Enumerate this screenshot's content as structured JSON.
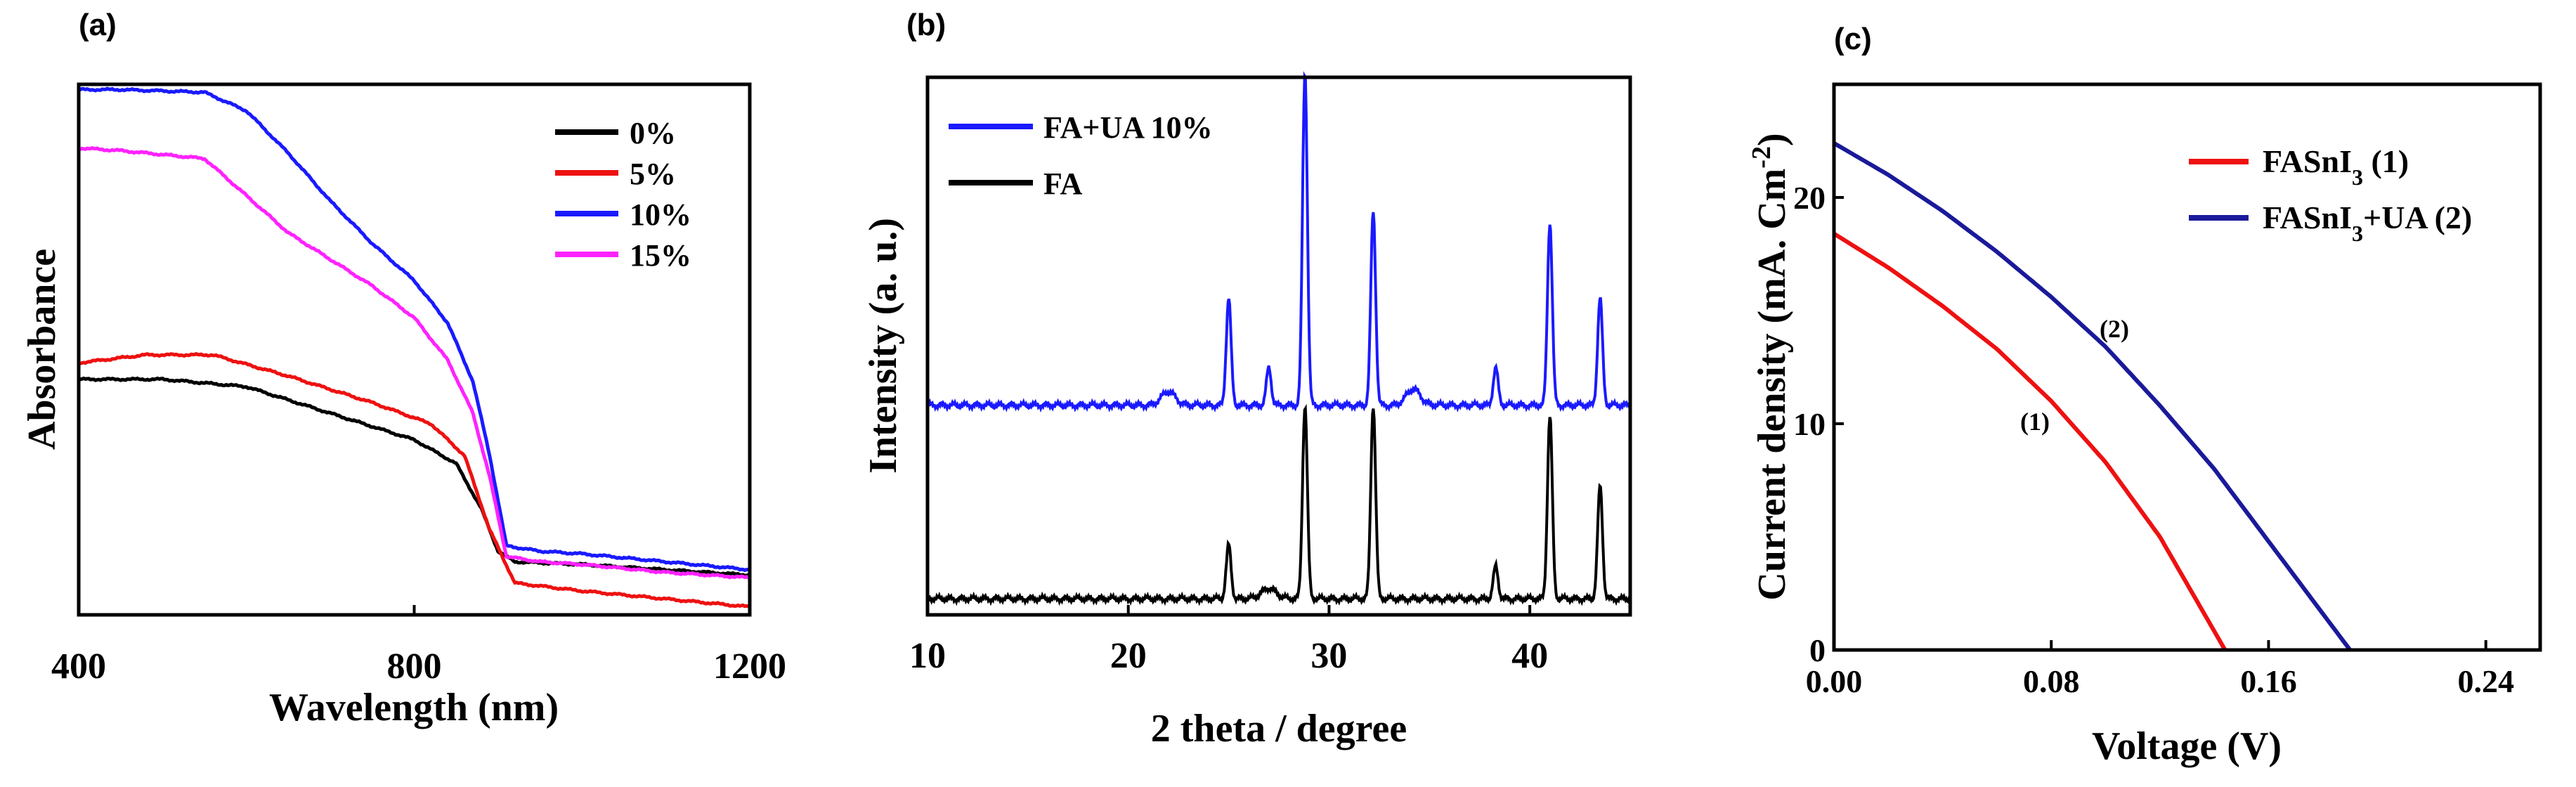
{
  "chart_data": [
    {
      "panel_label": "(a)",
      "type": "line",
      "xlabel": "Wavelength (nm)",
      "ylabel": "Absorbance",
      "xlim": [
        400,
        1200
      ],
      "ylim": [
        0,
        1
      ],
      "x_ticks": [
        "400",
        "800",
        "1200"
      ],
      "y_ticks": [],
      "legend_position": "top-right",
      "series": [
        {
          "name": "0%",
          "color": "#000000",
          "x": [
            400,
            500,
            600,
            700,
            800,
            850,
            880,
            900,
            920,
            1000,
            1100,
            1200
          ],
          "y": [
            0.444,
            0.444,
            0.43,
            0.38,
            0.33,
            0.285,
            0.2,
            0.12,
            0.1,
            0.095,
            0.085,
            0.075
          ]
        },
        {
          "name": "5%",
          "color": "#ee1111",
          "x": [
            400,
            480,
            560,
            650,
            750,
            820,
            860,
            890,
            920,
            1000,
            1100,
            1200
          ],
          "y": [
            0.475,
            0.49,
            0.49,
            0.45,
            0.4,
            0.36,
            0.3,
            0.16,
            0.06,
            0.045,
            0.03,
            0.015
          ]
        },
        {
          "name": "10%",
          "color": "#1a1aff",
          "x": [
            400,
            450,
            550,
            600,
            650,
            700,
            750,
            800,
            840,
            870,
            890,
            910,
            950,
            1000,
            1100,
            1200
          ],
          "y": [
            0.99,
            0.99,
            0.985,
            0.95,
            0.87,
            0.78,
            0.7,
            0.63,
            0.55,
            0.44,
            0.3,
            0.13,
            0.12,
            0.115,
            0.1,
            0.085
          ]
        },
        {
          "name": "15%",
          "color": "#ff22ff",
          "x": [
            400,
            450,
            550,
            600,
            650,
            700,
            750,
            800,
            840,
            870,
            890,
            910,
            950,
            1000,
            1100,
            1200
          ],
          "y": [
            0.88,
            0.875,
            0.86,
            0.79,
            0.72,
            0.67,
            0.62,
            0.56,
            0.48,
            0.38,
            0.26,
            0.11,
            0.1,
            0.095,
            0.08,
            0.07
          ]
        }
      ]
    },
    {
      "panel_label": "(b)",
      "type": "line",
      "xlabel": "2 theta / degree",
      "ylabel": "Intensity (a. u.)",
      "xlim": [
        10,
        45
      ],
      "ylim": [
        0,
        1
      ],
      "x_ticks": [
        "10",
        "20",
        "30",
        "40"
      ],
      "y_ticks": [],
      "legend_position": "top-left",
      "series": [
        {
          "name": "FA+UA 10%",
          "color": "#1a1aff",
          "baseline": 0.39,
          "peaks": [
            [
              22,
              0.025
            ],
            [
              25,
              0.2
            ],
            [
              27,
              0.07
            ],
            [
              28.8,
              0.62
            ],
            [
              32.2,
              0.36
            ],
            [
              34.2,
              0.03
            ],
            [
              38.3,
              0.07
            ],
            [
              41,
              0.34
            ],
            [
              43.5,
              0.2
            ]
          ]
        },
        {
          "name": "FA",
          "color": "#000000",
          "baseline": 0.03,
          "peaks": [
            [
              25,
              0.1
            ],
            [
              27,
              0.02
            ],
            [
              28.8,
              0.36
            ],
            [
              32.2,
              0.36
            ],
            [
              38.3,
              0.06
            ],
            [
              41,
              0.34
            ],
            [
              43.5,
              0.21
            ]
          ]
        }
      ]
    },
    {
      "panel_label": "(c)",
      "type": "line",
      "xlabel": "Voltage (V)",
      "ylabel": "Current density (mA. Cm",
      "ylabel_sup": "-2",
      "ylabel_end": ")",
      "xlim": [
        0,
        0.26
      ],
      "ylim": [
        0,
        25
      ],
      "x_ticks": [
        "0.00",
        "0.08",
        "0.16",
        "0.24"
      ],
      "y_ticks": [
        "0",
        "10",
        "20"
      ],
      "legend_position": "top-right",
      "annotations": [
        "(1)",
        "(2)"
      ],
      "series": [
        {
          "name": "FASnI",
          "name_sub": "3",
          "name_end": " (1)",
          "color": "#ee1111",
          "x": [
            0,
            0.02,
            0.04,
            0.06,
            0.08,
            0.1,
            0.12,
            0.144
          ],
          "y": [
            18.4,
            16.9,
            15.2,
            13.3,
            11.0,
            8.3,
            5.0,
            0
          ]
        },
        {
          "name": "FASnI",
          "name_sub": "3",
          "name_end": "+UA (2)",
          "color": "#1a1a9a",
          "x": [
            0,
            0.02,
            0.04,
            0.06,
            0.08,
            0.1,
            0.12,
            0.14,
            0.16,
            0.19
          ],
          "y": [
            22.4,
            21.0,
            19.4,
            17.6,
            15.6,
            13.4,
            10.8,
            8.0,
            4.8,
            0
          ]
        }
      ]
    }
  ]
}
